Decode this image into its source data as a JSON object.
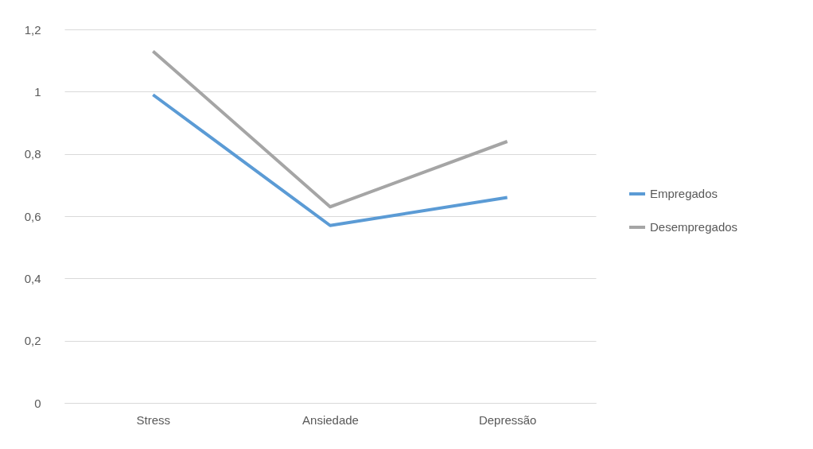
{
  "chart_data": {
    "type": "line",
    "categories": [
      "Stress",
      "Ansiedade",
      "Depressão"
    ],
    "series": [
      {
        "name": "Empregados",
        "color": "#5b9bd5",
        "values": [
          0.99,
          0.57,
          0.66
        ]
      },
      {
        "name": "Desempregados",
        "color": "#a5a5a5",
        "values": [
          1.13,
          0.63,
          0.84
        ]
      }
    ],
    "ylim": [
      0,
      1.2
    ],
    "yticks": [
      0,
      {
        "value": 0.2,
        "label": "0,2"
      },
      {
        "value": 0.4,
        "label": "0,4"
      },
      {
        "value": 0.6,
        "label": "0,6"
      },
      {
        "value": 0.8,
        "label": "0,8"
      },
      1,
      {
        "value": 1.2,
        "label": "1,2"
      }
    ],
    "grid": "y",
    "legend": "right",
    "marker": "none",
    "line_style": "solid"
  }
}
